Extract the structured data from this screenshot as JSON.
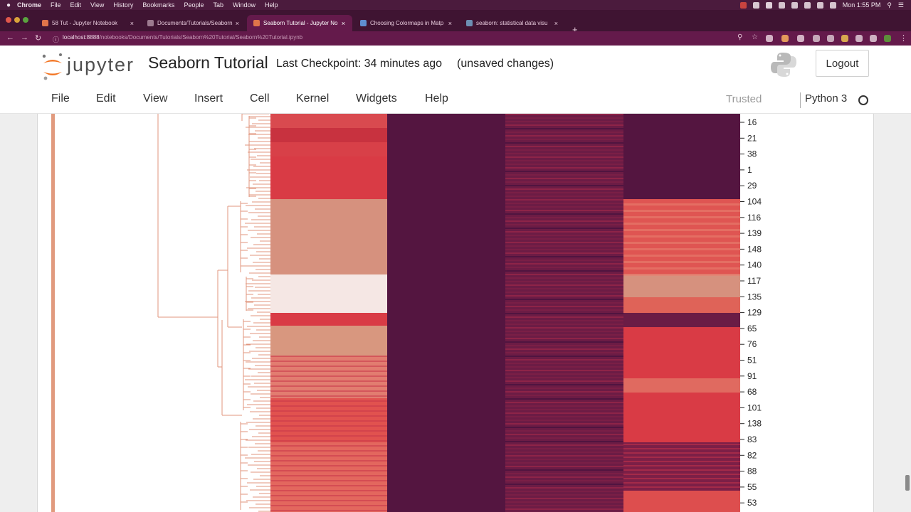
{
  "system_menu": {
    "app": "Chrome",
    "items": [
      "File",
      "Edit",
      "View",
      "History",
      "Bookmarks",
      "People",
      "Tab",
      "Window",
      "Help"
    ],
    "clock": "Mon 1:55 PM"
  },
  "browser": {
    "tabs": [
      {
        "title": "58 Tut - Jupyter Notebook",
        "active": false
      },
      {
        "title": "Documents/Tutorials/Seaborn",
        "active": false
      },
      {
        "title": "Seaborn Tutorial - Jupyter No",
        "active": true
      },
      {
        "title": "Choosing Colormaps in Matp",
        "active": false
      },
      {
        "title": "seaborn: statistical data visu",
        "active": false
      }
    ],
    "url_host": "localhost:8888",
    "url_path": "/notebooks/Documents/Tutorials/Seaborn%20Tutorial/Seaborn%20Tutorial.ipynb"
  },
  "jupyter": {
    "logo_text": "jupyter",
    "notebook_title": "Seaborn Tutorial",
    "checkpoint": "Last Checkpoint: 34 minutes ago",
    "save_status": "(unsaved changes)",
    "logout_label": "Logout",
    "menu": [
      "File",
      "Edit",
      "View",
      "Insert",
      "Cell",
      "Kernel",
      "Widgets",
      "Help"
    ],
    "trusted_label": "Trusted",
    "kernel_name": "Python 3"
  },
  "chart_data": {
    "type": "heatmap",
    "row_labels": [
      "16",
      "21",
      "38",
      "1",
      "29",
      "104",
      "116",
      "139",
      "148",
      "140",
      "117",
      "135",
      "129",
      "65",
      "76",
      "51",
      "91",
      "68",
      "101",
      "138",
      "83",
      "82",
      "88",
      "55",
      "53"
    ],
    "colors": {
      "dark": "#541540",
      "red": "#d93b45",
      "salmon": "#d6917e",
      "pale": "#f7eeec",
      "dendrogram": "#e0957d"
    }
  }
}
